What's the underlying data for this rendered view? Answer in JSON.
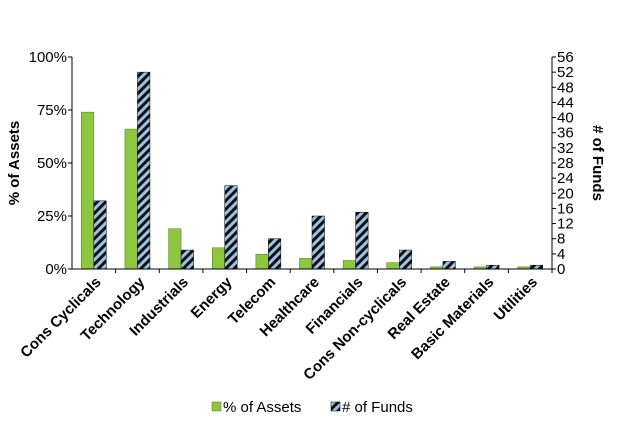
{
  "chart_data": {
    "type": "bar",
    "categories": [
      "Cons Cyclicals",
      "Technology",
      "Industrials",
      "Energy",
      "Telecom",
      "Healthcare",
      "Financials",
      "Cons Non-cyclicals",
      "Real Estate",
      "Basic Materials",
      "Utilities"
    ],
    "series": [
      {
        "name": "% of Assets",
        "axis": "left",
        "values": [
          74,
          66,
          19,
          10,
          7,
          5,
          4,
          3,
          1,
          1,
          1
        ],
        "color": "#8dc63f",
        "pattern": "solid"
      },
      {
        "name": "# of Funds",
        "axis": "right",
        "values": [
          18,
          52,
          5,
          22,
          8,
          14,
          15,
          5,
          2,
          1,
          1
        ],
        "color": "#9cc3e6",
        "pattern": "diagonal-hatch-black"
      }
    ],
    "ylabel": "% of Assets",
    "y2label": "# of Funds",
    "ylim": [
      0,
      100
    ],
    "y2lim": [
      0,
      56
    ],
    "yticks": [
      "0%",
      "25%",
      "50%",
      "75%",
      "100%"
    ],
    "y2ticks": [
      "0",
      "4",
      "8",
      "12",
      "16",
      "20",
      "24",
      "28",
      "32",
      "36",
      "40",
      "44",
      "48",
      "52",
      "56"
    ],
    "grid": false,
    "legend_position": "bottom"
  }
}
